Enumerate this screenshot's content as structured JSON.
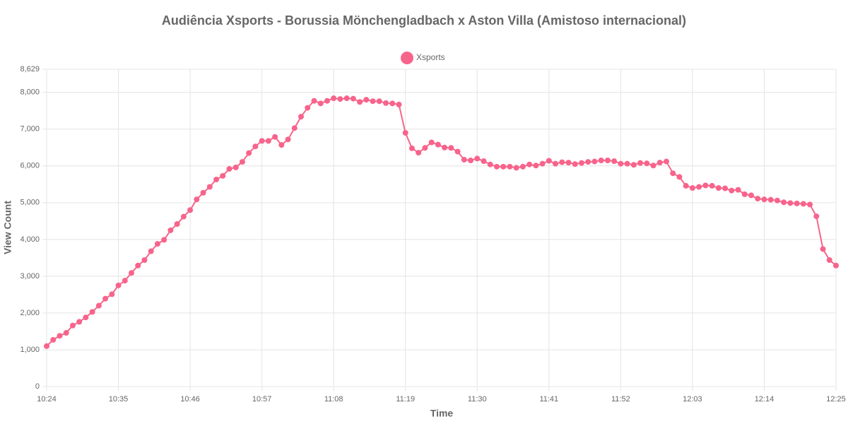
{
  "chart_data": {
    "type": "line",
    "title": "Audiência Xsports - Borussia Mönchengladbach x Aston Villa (Amistoso internacional)",
    "xlabel": "Time",
    "ylabel": "View Count",
    "x": [
      624,
      625,
      626,
      627,
      628,
      629,
      630,
      631,
      632,
      633,
      634,
      635,
      636,
      637,
      638,
      639,
      640,
      641,
      642,
      643,
      644,
      645,
      646,
      647,
      648,
      649,
      650,
      651,
      652,
      653,
      654,
      655,
      656,
      657,
      658,
      659,
      660,
      661,
      662,
      663,
      664,
      665,
      666,
      667,
      668,
      669,
      670,
      671,
      672,
      673,
      674,
      675,
      676,
      677,
      678,
      679,
      680,
      681,
      682,
      683,
      684,
      685,
      686,
      687,
      688,
      689,
      690,
      691,
      692,
      693,
      694,
      695,
      696,
      697,
      698,
      699,
      700,
      701,
      702,
      703,
      704,
      705,
      706,
      707,
      708,
      709,
      710,
      711,
      712,
      713,
      714,
      715,
      716,
      717,
      718,
      719,
      720,
      721,
      722,
      723,
      724,
      725,
      726,
      727,
      728,
      729,
      730,
      731,
      732,
      733,
      734,
      735,
      736,
      737,
      738,
      739,
      740,
      741,
      742,
      743,
      744,
      745
    ],
    "series": [
      {
        "name": "Xsports",
        "color": "#f7648b",
        "values": [
          1100,
          1270,
          1380,
          1460,
          1660,
          1760,
          1880,
          2030,
          2200,
          2390,
          2510,
          2750,
          2880,
          3090,
          3290,
          3440,
          3680,
          3880,
          3990,
          4250,
          4420,
          4620,
          4800,
          5090,
          5270,
          5430,
          5630,
          5730,
          5920,
          5960,
          6110,
          6350,
          6530,
          6680,
          6680,
          6790,
          6570,
          6720,
          7030,
          7340,
          7580,
          7770,
          7700,
          7770,
          7840,
          7820,
          7840,
          7830,
          7740,
          7800,
          7760,
          7760,
          7710,
          7700,
          7670,
          6900,
          6480,
          6360,
          6490,
          6640,
          6580,
          6500,
          6490,
          6390,
          6170,
          6150,
          6200,
          6130,
          6040,
          5980,
          5980,
          5980,
          5950,
          5980,
          6040,
          6010,
          6060,
          6140,
          6060,
          6100,
          6090,
          6050,
          6080,
          6110,
          6120,
          6150,
          6150,
          6130,
          6060,
          6060,
          6030,
          6080,
          6070,
          6010,
          6090,
          6120,
          5800,
          5700,
          5460,
          5400,
          5430,
          5470,
          5460,
          5400,
          5390,
          5330,
          5350,
          5230,
          5200,
          5110,
          5090,
          5080,
          5060,
          5010,
          4990,
          4980,
          4970,
          4950,
          4630,
          3740,
          3440,
          3290
        ]
      }
    ],
    "xlim": [
      624,
      745
    ],
    "xticks": [
      {
        "value": 624,
        "label": "10:24"
      },
      {
        "value": 635,
        "label": "10:35"
      },
      {
        "value": 646,
        "label": "10:46"
      },
      {
        "value": 657,
        "label": "10:57"
      },
      {
        "value": 668,
        "label": "11:08"
      },
      {
        "value": 679,
        "label": "11:19"
      },
      {
        "value": 690,
        "label": "11:30"
      },
      {
        "value": 701,
        "label": "11:41"
      },
      {
        "value": 712,
        "label": "11:52"
      },
      {
        "value": 723,
        "label": "12:03"
      },
      {
        "value": 734,
        "label": "12:14"
      },
      {
        "value": 745,
        "label": "12:25"
      }
    ],
    "ylim": [
      0,
      8629
    ],
    "yticks": [
      0,
      {
        "value": 1000,
        "label": "1,000"
      },
      {
        "value": 2000,
        "label": "2,000"
      },
      {
        "value": 3000,
        "label": "3,000"
      },
      {
        "value": 4000,
        "label": "4,000"
      },
      {
        "value": 5000,
        "label": "5,000"
      },
      {
        "value": 6000,
        "label": "6,000"
      },
      {
        "value": 7000,
        "label": "7,000"
      },
      {
        "value": 8000,
        "label": "8,000"
      },
      {
        "value": 8629,
        "label": "8,629"
      }
    ],
    "grid": true
  }
}
